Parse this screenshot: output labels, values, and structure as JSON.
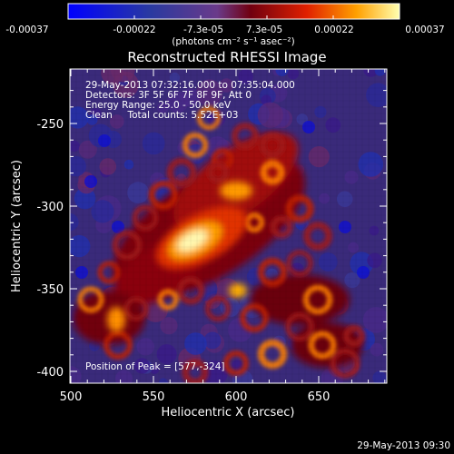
{
  "colorbar": {
    "ticks": [
      "-0.00037",
      "-0.00022",
      "-7.3e-05",
      "7.3e-05",
      "0.00022",
      "0.00037"
    ],
    "units": "(photons cm⁻² s⁻¹ asec⁻²)"
  },
  "title": "Reconstructed RHESSI Image",
  "info": {
    "time_range": "29-May-2013 07:32:16.000 to 07:35:04.000",
    "detectors": "Detectors: 3F 5F 6F 7F 8F 9F, Att 0",
    "energy": "Energy Range: 25.0 - 50.0 keV",
    "clean": "Clean     Total counts: 5.52E+03",
    "peak": "Position of Peak = [577,-324]"
  },
  "axes": {
    "xlabel": "Heliocentric X (arcsec)",
    "ylabel": "Heliocentric Y (arcsec)",
    "xticks": [
      "500",
      "550",
      "600",
      "650"
    ],
    "yticks": [
      "-250",
      "-300",
      "-350",
      "-400"
    ]
  },
  "footer": {
    "timestamp": "29-May-2013 09:30"
  },
  "colors": {
    "negative": "#1010d0",
    "positive": "#fff0a0",
    "background": "#000000"
  }
}
